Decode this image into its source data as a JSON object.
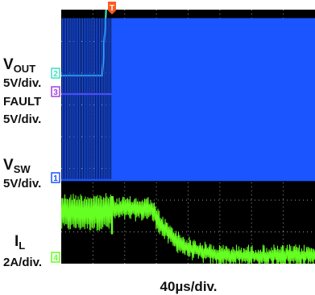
{
  "chart_data": {
    "type": "line",
    "title": "",
    "timebase": "40µs/div.",
    "x_unit": "µs",
    "xlim": [
      0,
      320
    ],
    "grid": true,
    "trigger_marker": "T",
    "trigger_time": 64,
    "channels": [
      {
        "id": "2",
        "name_parts": [
          "V",
          "OUT"
        ],
        "scale": "5V/div.",
        "color": "#3fe0c0",
        "kind": "step",
        "t": [
          0,
          52,
          58,
          60,
          64,
          80,
          120,
          140,
          200,
          320
        ],
        "div": [
          0,
          0,
          2.7,
          3.1,
          3.15,
          3.1,
          3.15,
          3.05,
          2.95,
          2.85
        ]
      },
      {
        "id": "3",
        "name": "FAULT",
        "scale": "",
        "color": "#a040e0",
        "kind": "step",
        "t": [
          0,
          120,
          120.5,
          320
        ],
        "div": [
          0,
          0,
          2.0,
          2.0
        ]
      },
      {
        "id": "1",
        "name_parts": [
          "V",
          "SW"
        ],
        "scale": "5V/div.",
        "color": "#1a55ff",
        "kind": "switching",
        "low_div": 0,
        "high_div": 5.1,
        "burst_end": 64,
        "burst_pulses": 30
      },
      {
        "id": "4",
        "name_parts": [
          "I",
          "L"
        ],
        "scale": "2A/div.",
        "color": "#66ff22",
        "kind": "ripple",
        "segments": [
          {
            "t0": 0,
            "t1": 64,
            "low": 0.9,
            "high": 2.1
          },
          {
            "t0": 64,
            "t1": 114,
            "low": 1.2,
            "high": 2.0
          },
          {
            "t0": 114,
            "t1": 320,
            "low_end": -0.3,
            "high_end": 0.4
          }
        ]
      }
    ],
    "colors": {
      "screen_bg": "#000000",
      "grid": "#9a9a9a"
    }
  },
  "labels": {
    "vout_label_sub": "OUT",
    "vout_label_main": "V",
    "vout_scale": "5V/div.",
    "fault_label": "FAULT",
    "fault_scale": "5V/div.",
    "vsw_label_main": "V",
    "vsw_label_sub": "SW",
    "vsw_scale": "5V/div.",
    "il_label_main": "I",
    "il_label_sub": "L",
    "il_scale": "2A/div.",
    "timebase": "40µs/div."
  }
}
